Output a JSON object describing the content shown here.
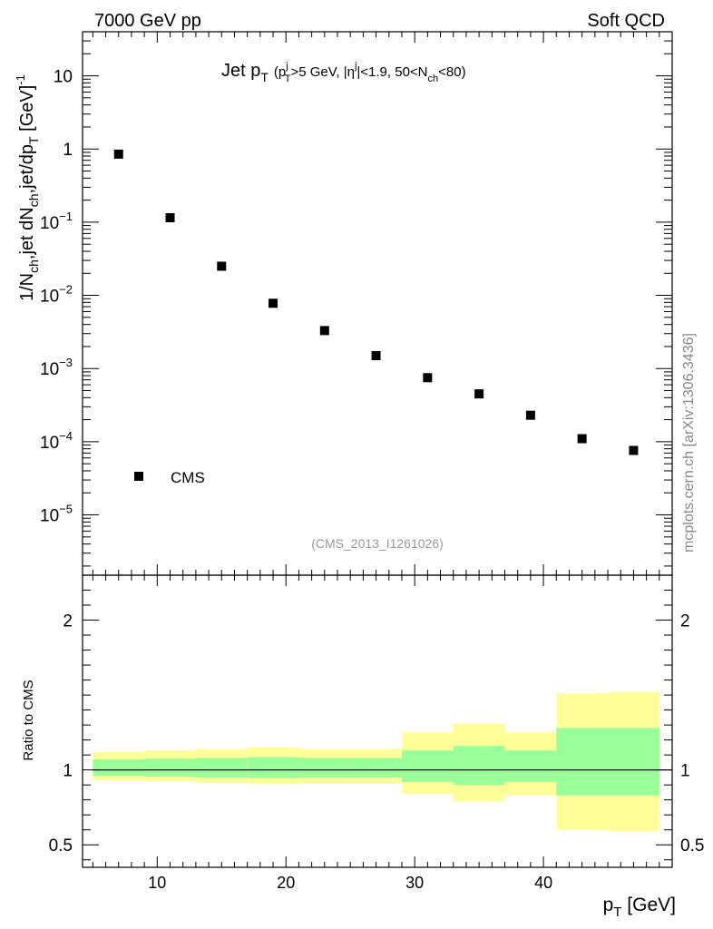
{
  "header": {
    "left": "7000 GeV pp",
    "right": "Soft QCD"
  },
  "side_label": "mcplots.cern.ch [arXiv:1306.3436]",
  "analysis_id": "(CMS_2013_I1261026)",
  "chart_data": [
    {
      "type": "scatter",
      "title": "Jet pT (pTj>5 GeV, |ηj|<1.9, 50<Nch<80)",
      "title_parts": {
        "main": "Jet p",
        "sub_T": "T",
        "cond_open": "(p",
        "sup_j": "j",
        "cond_mid": ">5 GeV, |η",
        "cond_rest": "|<1.9, 50<N",
        "sub_ch": "ch",
        "cond_end": "<80)"
      },
      "ylabel": "1/Nch,jet dNch,jet/dpT [GeV]^-1",
      "ylabel_parts": {
        "p1": "1/N",
        "s1": "ch",
        "p2": ",jet dN",
        "s2": "ch",
        "p3": ",jet/dp",
        "s3": "T",
        "p4": " [GeV]",
        "sup": "-1"
      },
      "yscale": "log",
      "ylim": [
        1.5e-06,
        40
      ],
      "xlim": [
        4.2,
        50
      ],
      "ytick_labels": [
        {
          "value": 10,
          "base": "10",
          "exp": ""
        },
        {
          "value": 1,
          "base": "1",
          "exp": ""
        },
        {
          "value": 0.1,
          "base": "10",
          "exp": "−1"
        },
        {
          "value": 0.01,
          "base": "10",
          "exp": "−2"
        },
        {
          "value": 0.001,
          "base": "10",
          "exp": "−3"
        },
        {
          "value": 0.0001,
          "base": "10",
          "exp": "−4"
        },
        {
          "value": 1e-05,
          "base": "10",
          "exp": "−5"
        }
      ],
      "series": [
        {
          "name": "CMS",
          "x": [
            7,
            11,
            15,
            19,
            23,
            27,
            31,
            35,
            39,
            43,
            47
          ],
          "y": [
            0.85,
            0.115,
            0.025,
            0.0078,
            0.0033,
            0.0015,
            0.00075,
            0.00045,
            0.00023,
            0.00011,
            7.6e-05
          ]
        }
      ],
      "legend": {
        "position": "bottom-left",
        "entries": [
          "CMS"
        ]
      }
    },
    {
      "type": "area",
      "ylabel": "Ratio to CMS",
      "xlabel": "pT [GeV]",
      "xlabel_parts": {
        "main": "p",
        "sub": "T",
        "unit": " [GeV]"
      },
      "xlim": [
        4.2,
        50
      ],
      "ylim": [
        0.35,
        2.3
      ],
      "xticks": [
        10,
        20,
        30,
        40
      ],
      "yticks": [
        0.5,
        1,
        2
      ],
      "ytick_labels": [
        "0.5",
        "1",
        "2"
      ],
      "xtick_labels": [
        "10",
        "20",
        "30",
        "40"
      ],
      "reference_line": 1,
      "bins": [
        {
          "x_low": 5,
          "x_high": 9,
          "yellow": [
            0.93,
            1.12
          ],
          "green": [
            0.96,
            1.07
          ]
        },
        {
          "x_low": 9,
          "x_high": 13,
          "yellow": [
            0.925,
            1.13
          ],
          "green": [
            0.955,
            1.075
          ]
        },
        {
          "x_low": 13,
          "x_high": 17,
          "yellow": [
            0.915,
            1.14
          ],
          "green": [
            0.95,
            1.08
          ]
        },
        {
          "x_low": 17,
          "x_high": 21,
          "yellow": [
            0.905,
            1.15
          ],
          "green": [
            0.945,
            1.085
          ]
        },
        {
          "x_low": 21,
          "x_high": 25,
          "yellow": [
            0.91,
            1.14
          ],
          "green": [
            0.95,
            1.08
          ]
        },
        {
          "x_low": 25,
          "x_high": 29,
          "yellow": [
            0.91,
            1.14
          ],
          "green": [
            0.95,
            1.08
          ]
        },
        {
          "x_low": 29,
          "x_high": 33,
          "yellow": [
            0.84,
            1.25
          ],
          "green": [
            0.92,
            1.13
          ]
        },
        {
          "x_low": 33,
          "x_high": 37,
          "yellow": [
            0.79,
            1.31
          ],
          "green": [
            0.9,
            1.16
          ]
        },
        {
          "x_low": 37,
          "x_high": 41,
          "yellow": [
            0.83,
            1.25
          ],
          "green": [
            0.92,
            1.13
          ]
        },
        {
          "x_low": 41,
          "x_high": 45,
          "yellow": [
            0.6,
            1.51
          ],
          "green": [
            0.83,
            1.28
          ]
        },
        {
          "x_low": 45,
          "x_high": 49,
          "yellow": [
            0.59,
            1.52
          ],
          "green": [
            0.83,
            1.28
          ]
        }
      ],
      "colors": {
        "yellow_band": "#ffff99",
        "green_band": "#99ff99",
        "reference": "#000000"
      }
    }
  ]
}
